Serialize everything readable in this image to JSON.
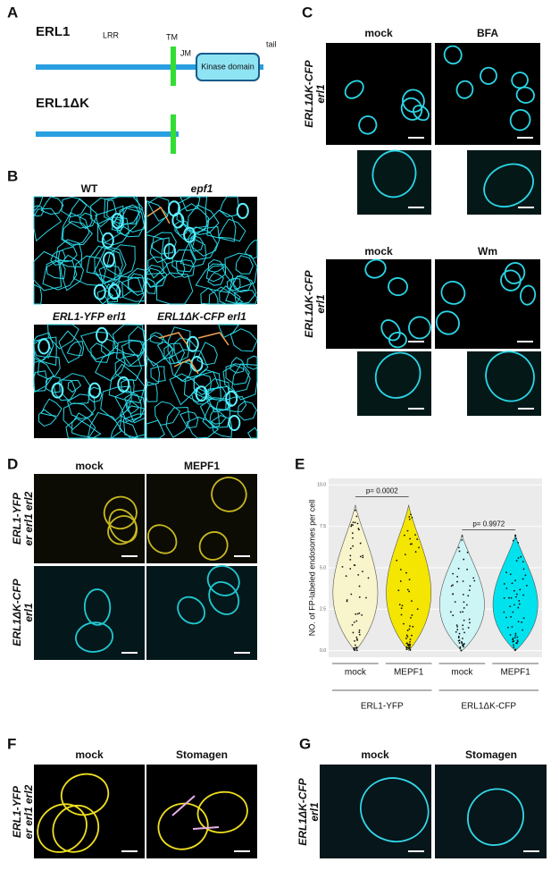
{
  "panel_labels": [
    "A",
    "B",
    "C",
    "D",
    "E",
    "F",
    "G"
  ],
  "panel_a": {
    "construct_full": "ERL1",
    "lrr": "LRR",
    "tm": "TM",
    "jm": "JM",
    "kinase_domain": "Kinase domain",
    "tail": "tail",
    "construct_truncated": "ERL1ΔK"
  },
  "panel_b": {
    "titles": [
      "WT",
      "epf1",
      "ERL1-YFP erl1",
      "ERL1ΔK-CFP erl1"
    ]
  },
  "panel_c": {
    "row_label": [
      "ERL1ΔK-CFP",
      "erl1"
    ],
    "top": [
      "mock",
      "BFA"
    ],
    "bottom": [
      "mock",
      "Wm"
    ]
  },
  "panel_d": {
    "columns": [
      "mock",
      "MEPF1"
    ],
    "rows": [
      [
        "ERL1-YFP",
        "er erl1 erl2"
      ],
      [
        "ERL1ΔK-CFP",
        "erl1"
      ]
    ]
  },
  "chart_data": {
    "type": "violin",
    "ylabel": "NO. of FP-labeled endosomes per cell",
    "categories": [
      "mock",
      "MEPF1",
      "mock",
      "MEPF1"
    ],
    "groups": [
      "ERL1-YFP",
      "ERL1ΔK-CFP"
    ],
    "colors": [
      "#f8f4cc",
      "#f4e600",
      "#cdf5f5",
      "#00e3ee"
    ],
    "min": [
      0,
      0,
      0,
      0
    ],
    "max": [
      8.8,
      8.8,
      7,
      7
    ],
    "comparisons": [
      {
        "label": "p= 0.0002",
        "y": 9.3
      },
      {
        "label": "p= 0.9972",
        "y": 7.3
      }
    ],
    "ylim": [
      -0.4,
      10.4
    ],
    "yticks": [
      {
        "value": 0,
        "label": "0.0"
      },
      2.5,
      {
        "value": 5,
        "label": "5.0"
      },
      7.5,
      {
        "value": 10,
        "label": "10.0"
      }
    ],
    "grid": true
  },
  "panel_f": {
    "columns": [
      "mock",
      "Stomagen"
    ],
    "row": [
      "ERL1-YFP",
      "er erl1 erl2"
    ]
  },
  "panel_g": {
    "columns": [
      "mock",
      "Stomagen"
    ],
    "row": [
      "ERL1ΔK-CFP",
      "erl1"
    ]
  }
}
